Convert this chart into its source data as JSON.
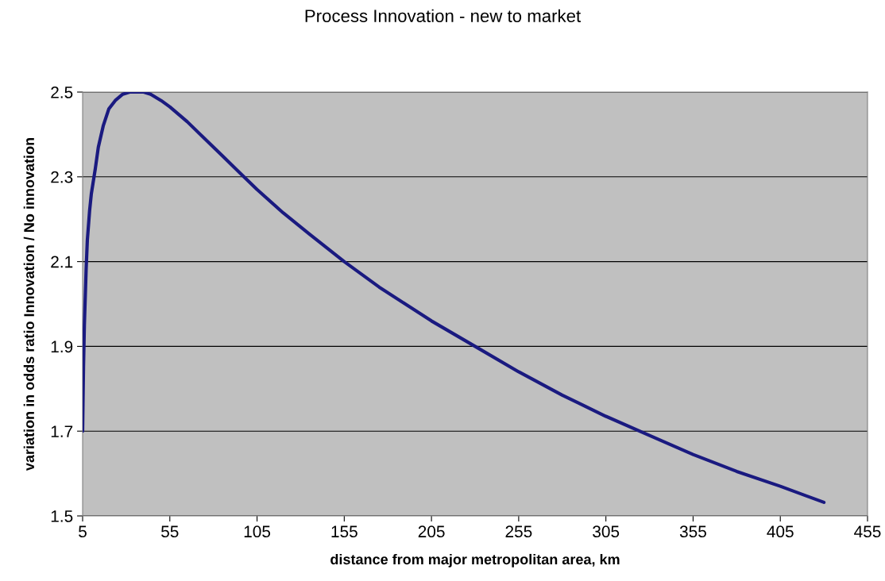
{
  "chart_data": {
    "type": "line",
    "title": "Process Innovation - new to market",
    "xlabel": "distance from major metropolitan area, km",
    "ylabel": "variation in odds ratio Innovation / No innovation",
    "series": [
      {
        "color": "#1a1a80",
        "x": [
          5,
          5.5,
          6,
          7,
          7.7,
          9,
          10,
          12.3,
          14,
          16.8,
          20,
          23.7,
          28,
          32,
          35,
          40,
          44,
          50,
          55,
          65,
          75,
          85,
          95,
          105,
          120,
          135,
          155,
          175,
          190,
          205,
          230,
          255,
          280,
          305,
          330,
          355,
          380,
          405,
          430
        ],
        "values": [
          1.7,
          1.85,
          1.95,
          2.08,
          2.15,
          2.22,
          2.26,
          2.32,
          2.37,
          2.42,
          2.46,
          2.48,
          2.495,
          2.5,
          2.5,
          2.5,
          2.495,
          2.48,
          2.465,
          2.43,
          2.39,
          2.35,
          2.31,
          2.27,
          2.215,
          2.165,
          2.1,
          2.04,
          2.0,
          1.96,
          1.9,
          1.84,
          1.785,
          1.735,
          1.69,
          1.645,
          1.605,
          1.57,
          1.532
        ]
      }
    ],
    "xlim": [
      5,
      455
    ],
    "xticks": [
      5,
      55,
      105,
      155,
      205,
      255,
      305,
      355,
      405,
      455
    ],
    "ylim": [
      1.5,
      2.5
    ],
    "yticks": [
      1.5,
      1.7,
      1.9,
      2.1,
      2.3,
      2.5
    ],
    "grid": "y",
    "marker": "none",
    "line_style": "solid"
  }
}
